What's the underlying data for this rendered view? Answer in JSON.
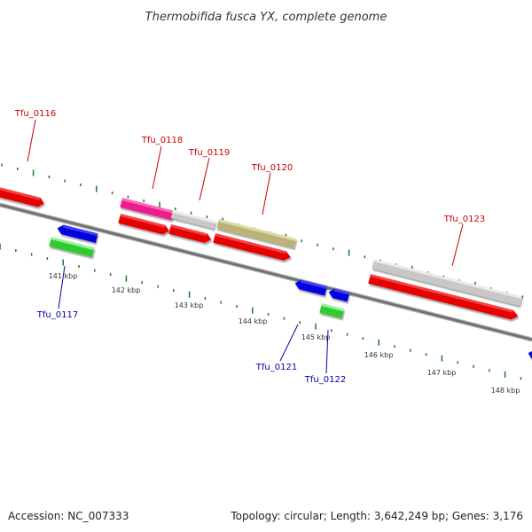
{
  "header": {
    "title": "Thermobifida fusca YX, complete genome"
  },
  "footer": {
    "accession": "Accession: NC_007333",
    "summary": "Topology: circular; Length: 3,642,249 bp; Genes: 3,176"
  },
  "colors": {
    "forward_label": "#cc0000",
    "reverse_label": "#0000aa",
    "red_feature": "#e60000",
    "pink_feature": "#ee1a8c",
    "grey_feature": "#c8c8c8",
    "khaki_feature": "#bdb276",
    "blue_feature": "#0000e0",
    "green_feature": "#2ecc2e",
    "tick": "#1a7a1a",
    "backbone": "#808080"
  },
  "ticks": [
    "141 kbp",
    "142 kbp",
    "143 kbp",
    "144 kbp",
    "145 kbp",
    "146 kbp",
    "147 kbp",
    "148 kbp"
  ],
  "genes_forward": [
    {
      "name": "Tfu_0116"
    },
    {
      "name": "Tfu_0118"
    },
    {
      "name": "Tfu_0119"
    },
    {
      "name": "Tfu_0120"
    },
    {
      "name": "Tfu_0123"
    }
  ],
  "genes_reverse": [
    {
      "name": "Tfu_0117"
    },
    {
      "name": "Tfu_0121"
    },
    {
      "name": "Tfu_0122"
    }
  ]
}
